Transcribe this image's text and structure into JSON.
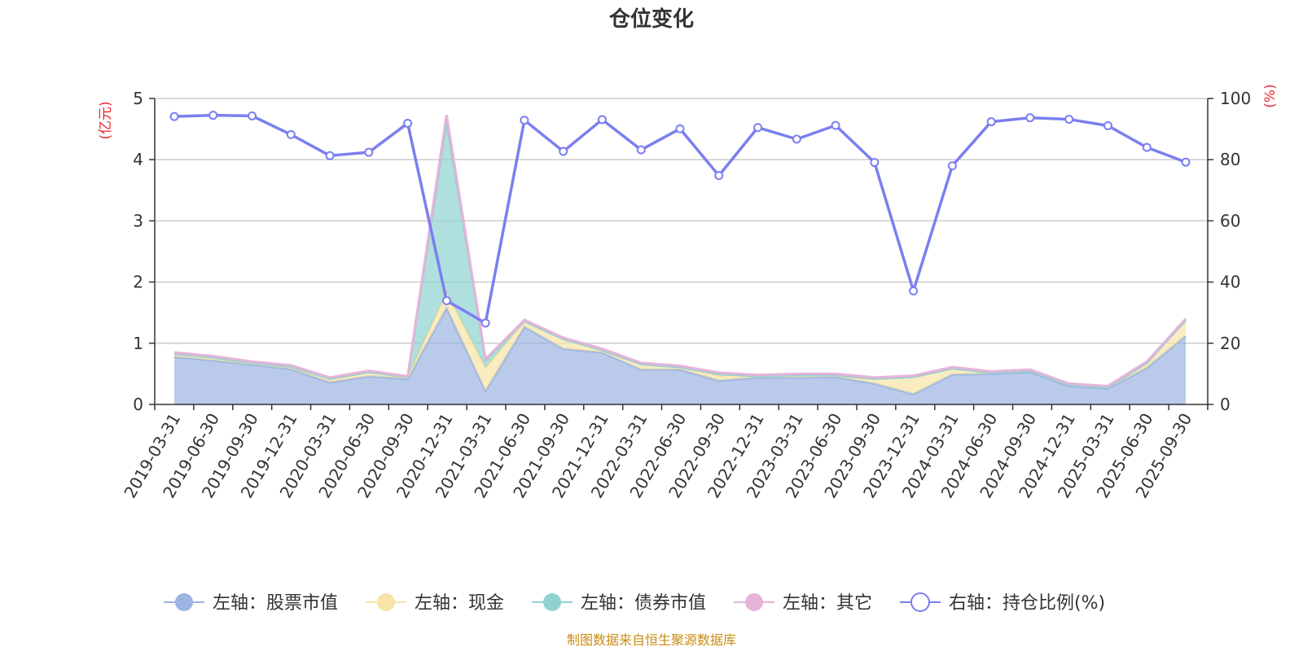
{
  "title": "仓位变化",
  "source_note": "制图数据来自恒生聚源数据库",
  "left_axis_unit": "(亿元)",
  "right_axis_unit": "(%)",
  "legend": [
    {
      "label": "左轴：股票市值",
      "color": "#9bb4e1",
      "icon": "filled-circle-icon"
    },
    {
      "label": "左轴：现金",
      "color": "#f8e4a6",
      "icon": "filled-circle-icon"
    },
    {
      "label": "左轴：债券市值",
      "color": "#8fd3d0",
      "icon": "filled-circle-icon"
    },
    {
      "label": "左轴：其它",
      "color": "#e6b3d9",
      "icon": "filled-circle-icon"
    },
    {
      "label": "右轴：持仓比例(%)",
      "color": "#7b7ff0",
      "icon": "hollow-circle-icon"
    }
  ],
  "chart_data": {
    "type": "area",
    "title": "仓位变化",
    "x": [
      "2019-03-31",
      "2019-06-30",
      "2019-09-30",
      "2019-12-31",
      "2020-03-31",
      "2020-06-30",
      "2020-09-30",
      "2020-12-31",
      "2021-03-31",
      "2021-06-30",
      "2021-09-30",
      "2021-12-31",
      "2022-03-31",
      "2022-06-30",
      "2022-09-30",
      "2022-12-31",
      "2023-03-31",
      "2023-06-30",
      "2023-09-30",
      "2023-12-31",
      "2024-03-31",
      "2024-06-30",
      "2024-09-30",
      "2024-12-31",
      "2025-03-31",
      "2025-06-30",
      "2025-09-30"
    ],
    "left_axis": {
      "label": "(亿元)",
      "ylim": [
        0,
        5
      ],
      "ticks": [
        0,
        1,
        2,
        3,
        4,
        5
      ]
    },
    "right_axis": {
      "label": "(%)",
      "ylim": [
        0,
        100
      ],
      "ticks": [
        0,
        20,
        40,
        60,
        80,
        100
      ]
    },
    "series": [
      {
        "name": "左轴：股票市值",
        "axis": "left",
        "type": "area",
        "color": "#9bb4e1",
        "values": [
          0.78,
          0.72,
          0.65,
          0.58,
          0.36,
          0.46,
          0.42,
          1.58,
          0.22,
          1.27,
          0.91,
          0.85,
          0.57,
          0.57,
          0.39,
          0.44,
          0.44,
          0.45,
          0.34,
          0.17,
          0.49,
          0.5,
          0.53,
          0.3,
          0.26,
          0.6,
          1.12
        ]
      },
      {
        "name": "左轴：现金",
        "axis": "left",
        "type": "area",
        "color": "#f8e4a6",
        "values": [
          0.05,
          0.05,
          0.03,
          0.04,
          0.06,
          0.07,
          0.03,
          0.25,
          0.38,
          0.09,
          0.16,
          0.04,
          0.09,
          0.04,
          0.08,
          0.02,
          0.04,
          0.03,
          0.08,
          0.28,
          0.1,
          0.02,
          0.02,
          0.02,
          0.02,
          0.08,
          0.26
        ]
      },
      {
        "name": "左轴：债券市值",
        "axis": "left",
        "type": "area",
        "color": "#8fd3d0",
        "values": [
          0,
          0,
          0,
          0,
          0,
          0,
          0,
          2.8,
          0.12,
          0,
          0,
          0,
          0,
          0,
          0.03,
          0,
          0,
          0,
          0,
          0,
          0,
          0,
          0,
          0,
          0,
          0,
          0
        ]
      },
      {
        "name": "左轴：其它",
        "axis": "left",
        "type": "area",
        "color": "#e6b3d9",
        "values": [
          0.02,
          0.02,
          0.02,
          0.02,
          0.02,
          0.02,
          0.01,
          0.1,
          0.02,
          0.02,
          0.02,
          0.02,
          0.02,
          0.02,
          0.02,
          0.02,
          0.02,
          0.02,
          0.02,
          0.02,
          0.02,
          0.02,
          0.02,
          0.02,
          0.02,
          0.02,
          0.02
        ]
      },
      {
        "name": "右轴：持仓比例(%)",
        "axis": "right",
        "type": "line",
        "color": "#7b7ff0",
        "values": [
          94.1,
          94.5,
          94.3,
          88.2,
          81.3,
          82.4,
          91.9,
          33.9,
          26.6,
          92.9,
          82.7,
          93.1,
          83.2,
          90.1,
          74.8,
          90.5,
          86.7,
          91.2,
          79.1,
          37.1,
          78.0,
          92.4,
          93.7,
          93.2,
          91.1,
          84.0,
          79.2
        ]
      }
    ],
    "grid": true,
    "legend_position": "bottom"
  }
}
